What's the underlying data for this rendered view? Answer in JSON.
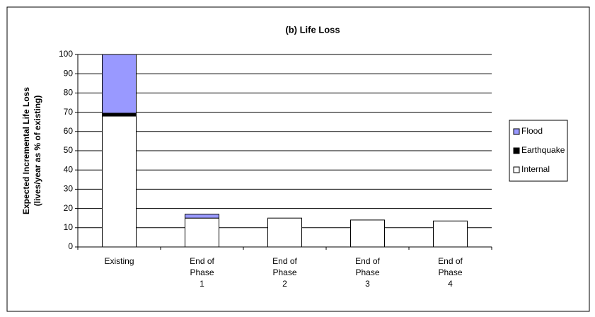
{
  "chart_data": {
    "type": "stacked_bar",
    "title": "(b)  Life Loss",
    "ylabel": [
      "Expected Incremental Life Loss",
      "(lives/year as % of existing)"
    ],
    "categories": [
      "Existing",
      "End of\nPhase\n1",
      "End of\nPhase\n2",
      "End of\nPhase\n3",
      "End of\nPhase\n4"
    ],
    "series": [
      {
        "name": "Internal",
        "color": "#ffffff",
        "values": [
          68,
          15,
          15,
          14,
          13.5
        ]
      },
      {
        "name": "Earthquake",
        "color": "#000000",
        "values": [
          1.5,
          0,
          0,
          0,
          0
        ]
      },
      {
        "name": "Flood",
        "color": "#9999ff",
        "values": [
          30.5,
          2,
          0,
          0,
          0
        ]
      }
    ],
    "ylim": [
      0,
      100
    ],
    "yticks": [
      0,
      10,
      20,
      30,
      40,
      50,
      60,
      70,
      80,
      90,
      100
    ],
    "grid": true,
    "legend": "right"
  }
}
